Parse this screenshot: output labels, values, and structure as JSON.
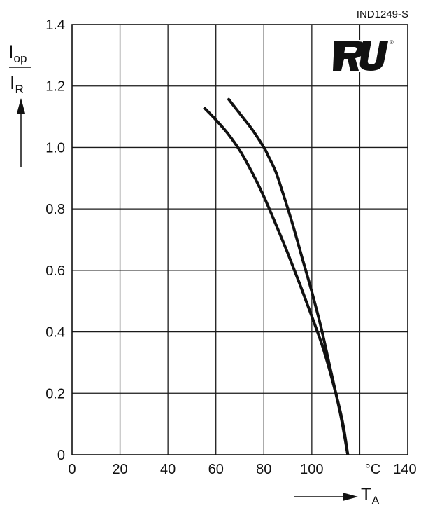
{
  "chart_data": {
    "type": "line",
    "xlim": [
      0,
      140
    ],
    "ylim": [
      0,
      1.4
    ],
    "x_ticks": [
      "0",
      "20",
      "40",
      "60",
      "80",
      "100",
      "",
      "140"
    ],
    "x_unit": "°C",
    "y_ticks": [
      "0",
      "0.2",
      "0.4",
      "0.6",
      "0.8",
      "1.0",
      "1.2",
      "1.4"
    ],
    "grid": true,
    "xlabel": {
      "main": "T",
      "sub": "A"
    },
    "ylabel": {
      "numerator": "I",
      "numerator_sub": "op",
      "denominator": "I",
      "denominator_sub": "R"
    },
    "code": "IND1249-S",
    "logo": "UR",
    "logo_mark": "®",
    "series": [
      {
        "x": [
          55,
          60,
          65,
          70,
          75,
          80,
          85,
          90,
          95,
          100,
          105,
          110,
          113,
          115
        ],
        "y": [
          1.13,
          1.09,
          1.045,
          0.99,
          0.92,
          0.84,
          0.75,
          0.655,
          0.555,
          0.45,
          0.34,
          0.2,
          0.1,
          0.0
        ]
      },
      {
        "x": [
          65,
          70,
          75,
          80,
          82,
          85,
          88,
          92,
          96,
          100,
          104,
          108,
          112,
          115
        ],
        "y": [
          1.16,
          1.11,
          1.06,
          1.0,
          0.97,
          0.92,
          0.85,
          0.75,
          0.64,
          0.53,
          0.41,
          0.27,
          0.13,
          0.0
        ]
      }
    ]
  }
}
